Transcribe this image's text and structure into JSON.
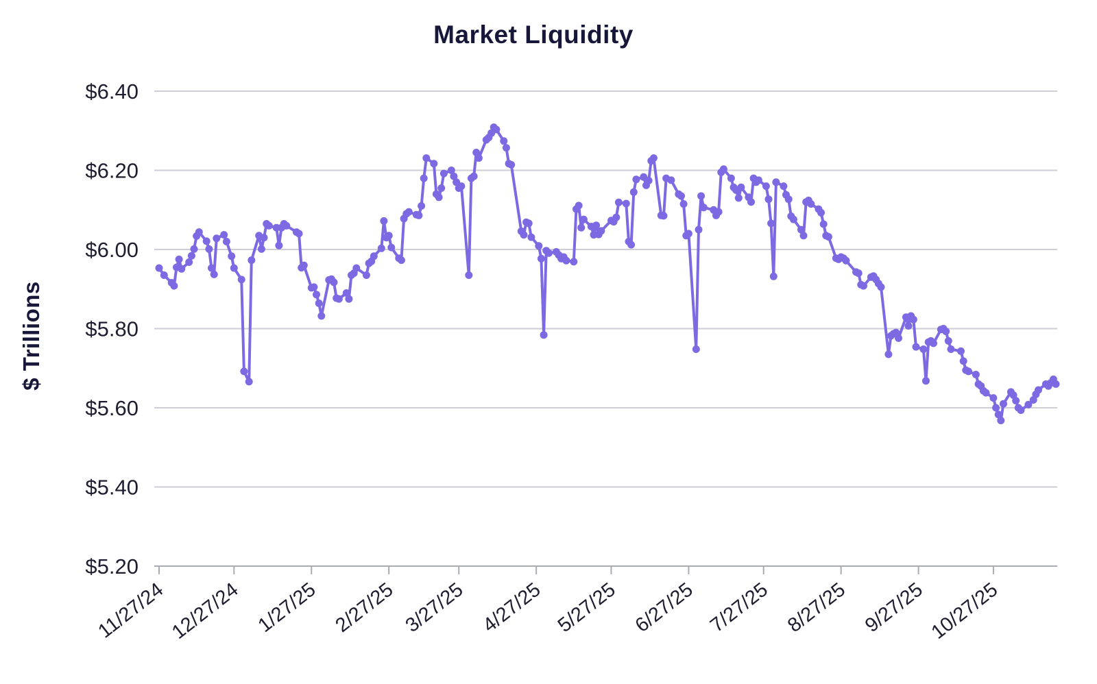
{
  "chart_data": {
    "type": "line",
    "title": "Market Liquidity",
    "ylabel": "$ Trillions",
    "xlabel": "",
    "ylim": [
      5.2,
      6.4
    ],
    "grid": "horizontal",
    "legend": "none",
    "colors": {
      "series": "#7d69e2",
      "title_text": "#17173a",
      "tick_text": "#1e1e30",
      "grid_line": "#cdced6",
      "axis_line": "#a9abb5"
    },
    "date_range": [
      "2024-11-27",
      "2025-11-21"
    ],
    "y_ticks": [
      {
        "value": 6.4,
        "label": "$6.40"
      },
      {
        "value": 6.2,
        "label": "$6.20"
      },
      {
        "value": 6.0,
        "label": "$6.00"
      },
      {
        "value": 5.8,
        "label": "$5.80"
      },
      {
        "value": 5.6,
        "label": "$5.60"
      },
      {
        "value": 5.4,
        "label": "$5.40"
      },
      {
        "value": 5.2,
        "label": "$5.20"
      }
    ],
    "x_ticks": [
      {
        "date": "2024-11-27",
        "label": "11/27/24"
      },
      {
        "date": "2024-12-27",
        "label": "12/27/24"
      },
      {
        "date": "2025-01-27",
        "label": "1/27/25"
      },
      {
        "date": "2025-02-27",
        "label": "2/27/25"
      },
      {
        "date": "2025-03-27",
        "label": "3/27/25"
      },
      {
        "date": "2025-04-27",
        "label": "4/27/25"
      },
      {
        "date": "2025-05-27",
        "label": "5/27/25"
      },
      {
        "date": "2025-06-27",
        "label": "6/27/25"
      },
      {
        "date": "2025-07-27",
        "label": "7/27/25"
      },
      {
        "date": "2025-08-27",
        "label": "8/27/25"
      },
      {
        "date": "2025-09-27",
        "label": "9/27/25"
      },
      {
        "date": "2025-10-27",
        "label": "10/27/25"
      }
    ],
    "series": [
      {
        "name": "Market Liquidity",
        "color": "#7d69e2",
        "dates": [
          "2024-11-27",
          "2024-11-29",
          "2024-12-02",
          "2024-12-03",
          "2024-12-04",
          "2024-12-05",
          "2024-12-06",
          "2024-12-09",
          "2024-12-10",
          "2024-12-11",
          "2024-12-12",
          "2024-12-13",
          "2024-12-16",
          "2024-12-17",
          "2024-12-18",
          "2024-12-19",
          "2024-12-20",
          "2024-12-23",
          "2024-12-24",
          "2024-12-26",
          "2024-12-27",
          "2024-12-30",
          "2024-12-31",
          "2025-01-02",
          "2025-01-03",
          "2025-01-06",
          "2025-01-07",
          "2025-01-08",
          "2025-01-09",
          "2025-01-10",
          "2025-01-13",
          "2025-01-14",
          "2025-01-15",
          "2025-01-16",
          "2025-01-17",
          "2025-01-21",
          "2025-01-22",
          "2025-01-23",
          "2025-01-24",
          "2025-01-27",
          "2025-01-28",
          "2025-01-29",
          "2025-01-30",
          "2025-01-31",
          "2025-02-03",
          "2025-02-04",
          "2025-02-05",
          "2025-02-06",
          "2025-02-07",
          "2025-02-10",
          "2025-02-11",
          "2025-02-12",
          "2025-02-13",
          "2025-02-14",
          "2025-02-18",
          "2025-02-19",
          "2025-02-20",
          "2025-02-21",
          "2025-02-24",
          "2025-02-25",
          "2025-02-26",
          "2025-02-27",
          "2025-02-28",
          "2025-03-03",
          "2025-03-04",
          "2025-03-05",
          "2025-03-06",
          "2025-03-07",
          "2025-03-10",
          "2025-03-11",
          "2025-03-12",
          "2025-03-13",
          "2025-03-14",
          "2025-03-17",
          "2025-03-18",
          "2025-03-19",
          "2025-03-20",
          "2025-03-21",
          "2025-03-24",
          "2025-03-25",
          "2025-03-26",
          "2025-03-27",
          "2025-03-28",
          "2025-03-31",
          "2025-04-01",
          "2025-04-02",
          "2025-04-03",
          "2025-04-04",
          "2025-04-07",
          "2025-04-08",
          "2025-04-09",
          "2025-04-10",
          "2025-04-11",
          "2025-04-14",
          "2025-04-15",
          "2025-04-16",
          "2025-04-17",
          "2025-04-21",
          "2025-04-22",
          "2025-04-23",
          "2025-04-24",
          "2025-04-25",
          "2025-04-28",
          "2025-04-29",
          "2025-04-30",
          "2025-05-01",
          "2025-05-02",
          "2025-05-05",
          "2025-05-06",
          "2025-05-07",
          "2025-05-08",
          "2025-05-09",
          "2025-05-12",
          "2025-05-13",
          "2025-05-14",
          "2025-05-15",
          "2025-05-16",
          "2025-05-19",
          "2025-05-20",
          "2025-05-21",
          "2025-05-22",
          "2025-05-23",
          "2025-05-27",
          "2025-05-28",
          "2025-05-29",
          "2025-05-30",
          "2025-06-02",
          "2025-06-03",
          "2025-06-04",
          "2025-06-05",
          "2025-06-06",
          "2025-06-09",
          "2025-06-10",
          "2025-06-11",
          "2025-06-12",
          "2025-06-13",
          "2025-06-16",
          "2025-06-17",
          "2025-06-18",
          "2025-06-20",
          "2025-06-23",
          "2025-06-24",
          "2025-06-25",
          "2025-06-26",
          "2025-06-27",
          "2025-06-30",
          "2025-07-01",
          "2025-07-02",
          "2025-07-03",
          "2025-07-07",
          "2025-07-08",
          "2025-07-09",
          "2025-07-10",
          "2025-07-11",
          "2025-07-14",
          "2025-07-15",
          "2025-07-16",
          "2025-07-17",
          "2025-07-18",
          "2025-07-21",
          "2025-07-22",
          "2025-07-23",
          "2025-07-24",
          "2025-07-25",
          "2025-07-28",
          "2025-07-29",
          "2025-07-30",
          "2025-07-31",
          "2025-08-01",
          "2025-08-04",
          "2025-08-05",
          "2025-08-06",
          "2025-08-07",
          "2025-08-08",
          "2025-08-11",
          "2025-08-12",
          "2025-08-13",
          "2025-08-14",
          "2025-08-15",
          "2025-08-18",
          "2025-08-19",
          "2025-08-20",
          "2025-08-21",
          "2025-08-22",
          "2025-08-25",
          "2025-08-26",
          "2025-08-27",
          "2025-08-28",
          "2025-08-29",
          "2025-09-02",
          "2025-09-03",
          "2025-09-04",
          "2025-09-05",
          "2025-09-08",
          "2025-09-09",
          "2025-09-10",
          "2025-09-11",
          "2025-09-12",
          "2025-09-15",
          "2025-09-16",
          "2025-09-17",
          "2025-09-18",
          "2025-09-19",
          "2025-09-22",
          "2025-09-23",
          "2025-09-24",
          "2025-09-25",
          "2025-09-26",
          "2025-09-29",
          "2025-09-30",
          "2025-10-01",
          "2025-10-02",
          "2025-10-03",
          "2025-10-06",
          "2025-10-07",
          "2025-10-08",
          "2025-10-09",
          "2025-10-10",
          "2025-10-14",
          "2025-10-15",
          "2025-10-16",
          "2025-10-17",
          "2025-10-20",
          "2025-10-21",
          "2025-10-22",
          "2025-10-23",
          "2025-10-24",
          "2025-10-27",
          "2025-10-28",
          "2025-10-29",
          "2025-10-30",
          "2025-10-31",
          "2025-11-03",
          "2025-11-04",
          "2025-11-05",
          "2025-11-06",
          "2025-11-07",
          "2025-11-10",
          "2025-11-12",
          "2025-11-13",
          "2025-11-14",
          "2025-11-17",
          "2025-11-18",
          "2025-11-19",
          "2025-11-20",
          "2025-11-21"
        ],
        "values": [
          5.953,
          5.935,
          5.916,
          5.908,
          5.955,
          5.975,
          5.951,
          5.968,
          5.984,
          6.001,
          6.034,
          6.044,
          6.021,
          6.001,
          5.953,
          5.937,
          6.028,
          6.037,
          6.02,
          5.983,
          5.953,
          5.924,
          5.692,
          5.666,
          5.973,
          6.035,
          6.001,
          6.03,
          6.065,
          6.06,
          6.055,
          6.01,
          6.055,
          6.065,
          6.06,
          6.044,
          6.04,
          5.954,
          5.96,
          5.903,
          5.905,
          5.886,
          5.864,
          5.832,
          5.923,
          5.925,
          5.917,
          5.877,
          5.875,
          5.89,
          5.875,
          5.935,
          5.94,
          5.953,
          5.935,
          5.965,
          5.97,
          5.983,
          6.003,
          6.072,
          6.03,
          6.035,
          6.005,
          5.978,
          5.973,
          6.078,
          6.09,
          6.095,
          6.088,
          6.086,
          6.11,
          6.18,
          6.231,
          6.217,
          6.14,
          6.132,
          6.155,
          6.192,
          6.2,
          6.185,
          6.17,
          6.155,
          6.16,
          5.935,
          6.18,
          6.185,
          6.245,
          6.231,
          6.277,
          6.283,
          6.294,
          6.309,
          6.303,
          6.274,
          6.257,
          6.217,
          6.214,
          6.046,
          6.037,
          6.069,
          6.066,
          6.031,
          6.009,
          5.977,
          5.784,
          5.997,
          5.991,
          5.994,
          5.986,
          5.977,
          5.981,
          5.972,
          5.969,
          6.102,
          6.111,
          6.055,
          6.076,
          6.058,
          6.037,
          6.061,
          6.038,
          6.047,
          6.073,
          6.07,
          6.081,
          6.119,
          6.116,
          6.02,
          6.012,
          6.145,
          6.177,
          6.183,
          6.162,
          6.174,
          6.224,
          6.231,
          6.086,
          6.085,
          6.18,
          6.175,
          6.14,
          6.135,
          6.115,
          6.035,
          6.04,
          5.748,
          6.05,
          6.135,
          6.106,
          6.1,
          6.086,
          6.095,
          6.195,
          6.203,
          6.18,
          6.157,
          6.15,
          6.13,
          6.157,
          6.132,
          6.12,
          6.18,
          6.17,
          6.175,
          6.16,
          6.127,
          6.066,
          5.932,
          6.17,
          6.16,
          6.138,
          6.127,
          6.084,
          6.076,
          6.05,
          6.035,
          6.12,
          6.124,
          6.115,
          6.102,
          6.093,
          6.064,
          6.035,
          6.032,
          5.978,
          5.975,
          5.981,
          5.978,
          5.972,
          5.943,
          5.94,
          5.911,
          5.908,
          5.93,
          5.933,
          5.924,
          5.914,
          5.905,
          5.735,
          5.782,
          5.787,
          5.79,
          5.776,
          5.829,
          5.807,
          5.832,
          5.823,
          5.754,
          5.748,
          5.668,
          5.766,
          5.769,
          5.763,
          5.798,
          5.8,
          5.793,
          5.769,
          5.748,
          5.743,
          5.718,
          5.695,
          5.692,
          5.684,
          5.66,
          5.655,
          5.643,
          5.638,
          5.625,
          5.6,
          5.583,
          5.568,
          5.61,
          5.64,
          5.632,
          5.618,
          5.6,
          5.594,
          5.608,
          5.62,
          5.634,
          5.645,
          5.66,
          5.655,
          5.663,
          5.672,
          5.66
        ]
      }
    ]
  }
}
